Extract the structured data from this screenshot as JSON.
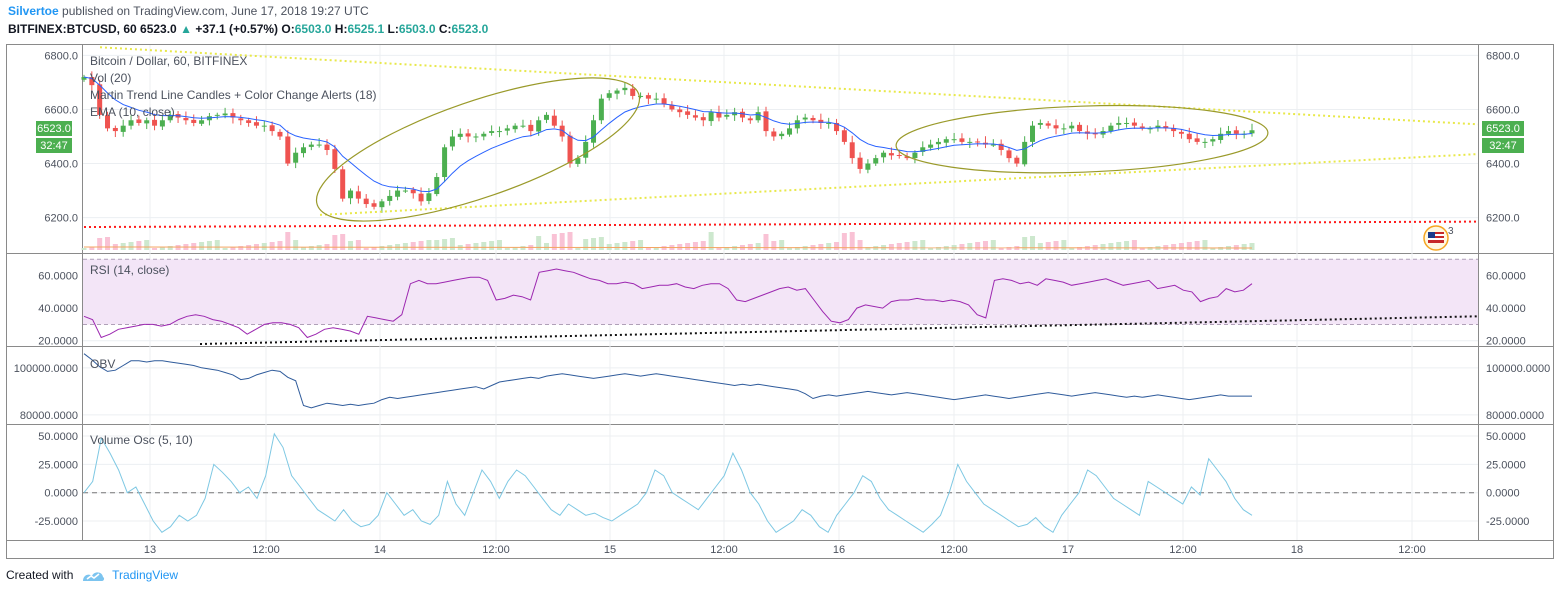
{
  "header": {
    "publisher": "Silvertoe",
    "published_text": "published on TradingView.com, June 17, 2018 19:27 UTC",
    "symbol": "BITFINEX:BTCUSD, 60",
    "last": "6523.0",
    "change": "+37.1 (+0.57%)",
    "o_label": "O:",
    "o": "6503.0",
    "h_label": "H:",
    "h": "6525.1",
    "l_label": "L:",
    "l": "6503.0",
    "c_label": "C:",
    "c": "6523.0"
  },
  "legend": {
    "title": "Bitcoin / Dollar, 60, BITFINEX",
    "vol": "Vol (20)",
    "martin": "Martin Trend Line Candles + Color Change Alerts (18)",
    "ema": "EMA (10, close)"
  },
  "price_badges": {
    "price": "6523.0",
    "countdown": "32:47"
  },
  "event_badge": {
    "count": "3"
  },
  "panels": {
    "rsi": "RSI (14, close)",
    "obv": "OBV",
    "volosc": "Volume Osc (5, 10)"
  },
  "footer": {
    "created": "Created with",
    "brand": "TradingView"
  },
  "colors": {
    "up": "#4caf50",
    "down": "#ef5350",
    "ema": "#2962ff",
    "rsi": "#9c27b0",
    "obv": "#2f5b9b",
    "osc": "#7ec8e3",
    "ellipse": "#9a9a2a",
    "trend": "#e8e84a",
    "support": "#ff1a1a"
  },
  "chart_data": [
    {
      "type": "candlestick",
      "title": "Bitcoin / Dollar, 60, BITFINEX",
      "x_ticks": [
        "13",
        "12:00",
        "14",
        "12:00",
        "15",
        "12:00",
        "16",
        "12:00",
        "17",
        "12:00",
        "18",
        "12:00"
      ],
      "y_ticks": [
        "6200.0",
        "6400.0",
        "6600.0",
        "6800.0"
      ],
      "ylim": [
        6080,
        6820
      ],
      "close": [
        6720,
        6690,
        6580,
        6530,
        6520,
        6540,
        6560,
        6550,
        6560,
        6540,
        6560,
        6580,
        6570,
        6560,
        6550,
        6560,
        6575,
        6580,
        6585,
        6570,
        6560,
        6550,
        6540,
        6540,
        6520,
        6500,
        6400,
        6440,
        6460,
        6470,
        6470,
        6450,
        6380,
        6270,
        6300,
        6270,
        6250,
        6240,
        6260,
        6280,
        6300,
        6300,
        6290,
        6260,
        6290,
        6350,
        6460,
        6500,
        6510,
        6500,
        6500,
        6510,
        6520,
        6520,
        6530,
        6540,
        6540,
        6520,
        6560,
        6580,
        6540,
        6500,
        6400,
        6420,
        6480,
        6560,
        6640,
        6660,
        6670,
        6680,
        6650,
        6650,
        6640,
        6640,
        6620,
        6600,
        6590,
        6580,
        6570,
        6560,
        6590,
        6570,
        6580,
        6590,
        6570,
        6560,
        6590,
        6520,
        6500,
        6510,
        6530,
        6560,
        6570,
        6560,
        6550,
        6550,
        6520,
        6480,
        6420,
        6380,
        6400,
        6420,
        6440,
        6430,
        6430,
        6420,
        6440,
        6460,
        6470,
        6480,
        6490,
        6490,
        6480,
        6480,
        6480,
        6470,
        6470,
        6450,
        6420,
        6400,
        6480,
        6540,
        6550,
        6540,
        6530,
        6530,
        6540,
        6520,
        6510,
        6510,
        6520,
        6540,
        6550,
        6550,
        6540,
        6530,
        6530,
        6540,
        6530,
        6520,
        6510,
        6490,
        6480,
        6480,
        6490,
        6510,
        6520,
        6510,
        6510,
        6523
      ],
      "ema_label": "EMA (10, close)",
      "volume_label": "Vol (20)",
      "support_line": 6185
    },
    {
      "type": "line",
      "title": "RSI (14, close)",
      "y_ticks": [
        "20.0000",
        "40.0000",
        "60.0000"
      ],
      "ylim": [
        18,
        72
      ],
      "bands": [
        30,
        70
      ],
      "values": [
        35,
        33,
        22,
        24,
        27,
        28,
        29,
        30,
        30,
        29,
        30,
        33,
        35,
        36,
        35,
        33,
        32,
        30,
        28,
        24,
        27,
        30,
        31,
        31,
        30,
        28,
        22,
        24,
        27,
        28,
        27,
        26,
        24,
        35,
        34,
        33,
        32,
        36,
        55,
        57,
        55,
        55,
        56,
        57,
        58,
        59,
        59,
        57,
        45,
        46,
        48,
        47,
        45,
        62,
        63,
        64,
        63,
        62,
        60,
        58,
        57,
        55,
        55,
        56,
        55,
        52,
        53,
        54,
        54,
        55,
        53,
        52,
        54,
        55,
        55,
        52,
        45,
        44,
        46,
        48,
        50,
        52,
        53,
        51,
        52,
        45,
        38,
        32,
        31,
        33,
        40,
        42,
        41,
        40,
        44,
        45,
        45,
        46,
        45,
        45,
        44,
        45,
        44,
        42,
        36,
        34,
        57,
        58,
        57,
        55,
        56,
        54,
        58,
        57,
        56,
        54,
        55,
        56,
        57,
        58,
        56,
        54,
        55,
        56,
        57,
        52,
        53,
        54,
        51,
        50,
        44,
        46,
        47,
        52,
        50,
        51,
        55
      ],
      "trend_line": [
        14,
        35
      ]
    },
    {
      "type": "line",
      "title": "OBV",
      "y_ticks": [
        "80000.0000",
        "100000.0000"
      ],
      "ylim": [
        77000,
        108000
      ],
      "values": [
        106000,
        103500,
        100500,
        98500,
        99000,
        101000,
        103000,
        103000,
        102500,
        103000,
        103000,
        102500,
        102000,
        101500,
        101000,
        100000,
        99500,
        99000,
        98000,
        97000,
        95000,
        95500,
        97000,
        98000,
        99000,
        98500,
        96000,
        94500,
        84000,
        83000,
        84000,
        85000,
        84500,
        84000,
        84500,
        84000,
        84500,
        85000,
        86500,
        87500,
        87000,
        87500,
        88000,
        88500,
        89000,
        89500,
        90000,
        90500,
        91000,
        91500,
        92000,
        91000,
        92500,
        94000,
        94500,
        95000,
        95500,
        96000,
        95500,
        96500,
        97000,
        97500,
        97000,
        96500,
        96000,
        95500,
        96000,
        96500,
        97000,
        97500,
        97000,
        96500,
        97000,
        97500,
        97000,
        96500,
        96000,
        95500,
        95000,
        94500,
        94000,
        93500,
        93000,
        92500,
        93000,
        92500,
        93000,
        92500,
        92000,
        91500,
        91000,
        90500,
        89000,
        87000,
        88000,
        88500,
        88000,
        88500,
        89000,
        89500,
        90000,
        89500,
        89000,
        88500,
        89000,
        89500,
        89000,
        88500,
        88000,
        87500,
        87000,
        86500,
        87000,
        87500,
        88000,
        88500,
        88000,
        87500,
        87000,
        87500,
        88000,
        88500,
        89000,
        89500,
        89000,
        88500,
        88000,
        88500,
        89000,
        89500,
        89000,
        88500,
        88000,
        87500,
        88000,
        87500,
        88000,
        88500,
        88000,
        87500,
        87000,
        86500,
        87000,
        87500,
        88000,
        88500,
        88000,
        88000,
        88000,
        88000
      ],
      "current": 87500
    },
    {
      "type": "line",
      "title": "Volume Osc (5, 10)",
      "y_ticks": [
        "-25.0000",
        "0.0000",
        "25.0000",
        "50.0000"
      ],
      "ylim": [
        -40,
        58
      ],
      "zero_line": 0,
      "values": [
        0,
        10,
        48,
        35,
        20,
        0,
        5,
        -10,
        -25,
        -35,
        -30,
        -20,
        -25,
        -20,
        -5,
        25,
        18,
        10,
        0,
        5,
        -5,
        15,
        52,
        40,
        15,
        5,
        -5,
        -15,
        -20,
        -25,
        -15,
        -25,
        -30,
        -28,
        -20,
        0,
        -10,
        -20,
        -15,
        -25,
        -28,
        -20,
        10,
        -10,
        -20,
        0,
        20,
        10,
        -5,
        10,
        20,
        15,
        5,
        -5,
        -15,
        -20,
        -10,
        -15,
        -20,
        -18,
        -22,
        -25,
        -20,
        -15,
        -10,
        0,
        20,
        15,
        0,
        -5,
        -10,
        -15,
        -5,
        5,
        15,
        35,
        20,
        0,
        -10,
        -25,
        -35,
        -30,
        -25,
        -15,
        -20,
        -30,
        -35,
        -20,
        -10,
        0,
        15,
        10,
        -5,
        -15,
        -20,
        -25,
        -30,
        -35,
        -28,
        -20,
        0,
        25,
        10,
        0,
        -10,
        -15,
        -20,
        -25,
        -30,
        -28,
        -22,
        -30,
        -35,
        -20,
        -10,
        0,
        20,
        15,
        5,
        -5,
        -10,
        -15,
        -20,
        10,
        5,
        0,
        -5,
        -10,
        5,
        -2,
        30,
        20,
        10,
        -5,
        -15,
        -20
      ]
    }
  ]
}
